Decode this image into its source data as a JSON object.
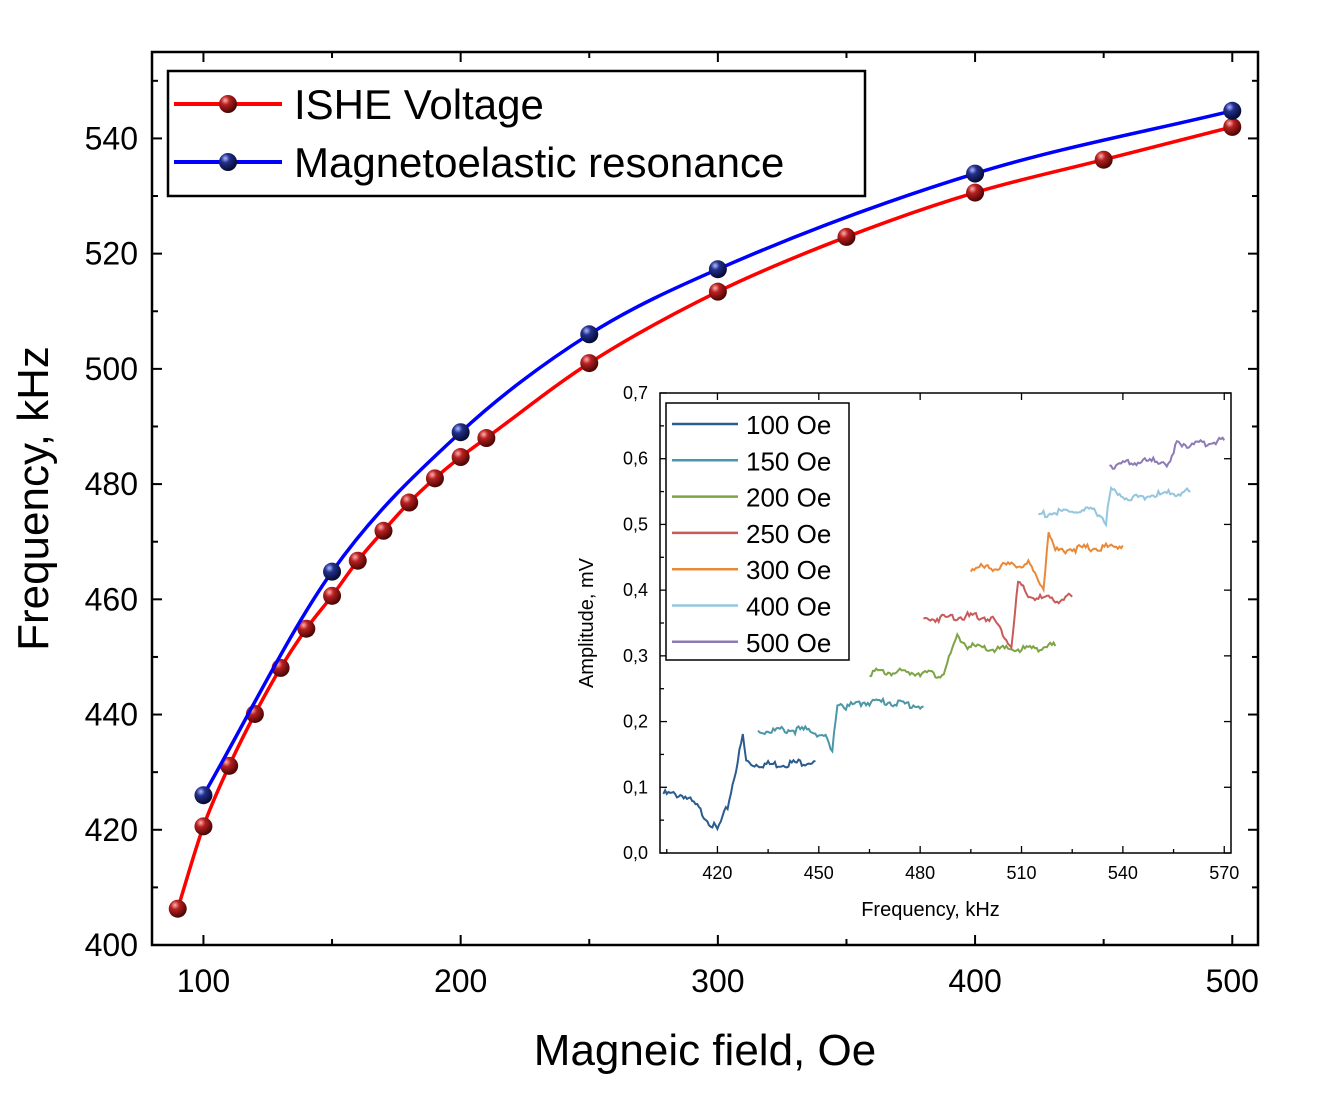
{
  "chart_data": [
    {
      "type": "line",
      "title": "",
      "xlabel": "Magneic field, Oe",
      "ylabel": "Frequency, kHz",
      "xlim": [
        80,
        510
      ],
      "ylim": [
        400,
        555
      ],
      "xticks": [
        100,
        200,
        300,
        400,
        500
      ],
      "yticks": [
        400,
        420,
        440,
        460,
        480,
        500,
        520,
        540
      ],
      "legend_position": "top-left",
      "series": [
        {
          "name": "ISHE Voltage",
          "color": "#ff0000",
          "marker_color": "#a01010",
          "x": [
            90,
            100,
            110,
            120,
            130,
            140,
            150,
            160,
            170,
            180,
            190,
            200,
            210,
            250,
            300,
            350,
            400,
            450,
            500
          ],
          "y": [
            406.3,
            420.6,
            431.1,
            440.1,
            448.1,
            454.9,
            460.6,
            466.7,
            471.9,
            476.8,
            481.0,
            484.7,
            488.0,
            501.0,
            513.4,
            522.9,
            530.6,
            536.3,
            542.0
          ]
        },
        {
          "name": "Magnetoelastic resonance",
          "color": "#0000ff",
          "marker_color": "#10186e",
          "x": [
            100,
            150,
            200,
            250,
            300,
            400,
            500
          ],
          "y": [
            426.0,
            464.8,
            489.0,
            506.0,
            517.3,
            533.9,
            544.8
          ]
        }
      ]
    },
    {
      "type": "line",
      "title": "",
      "xlabel": "Frequency, kHz",
      "ylabel": "Amplitude, mV",
      "xlim": [
        403,
        572
      ],
      "ylim": [
        0.0,
        0.7
      ],
      "xticks": [
        "420",
        "450",
        "480",
        "510",
        "540",
        "570"
      ],
      "yticks": [
        "0,0",
        "0,1",
        "0,2",
        "0,3",
        "0,4",
        "0,5",
        "0,6",
        "0,7"
      ],
      "legend_position": "top-left",
      "series": [
        {
          "name": "100 Oe",
          "color": "#2b5b8f",
          "x": [
            404,
            410,
            414,
            418,
            420,
            423,
            426,
            427.5,
            428.5,
            430,
            438,
            449
          ],
          "y": [
            0.09,
            0.088,
            0.07,
            0.045,
            0.035,
            0.07,
            0.14,
            0.178,
            0.14,
            0.135,
            0.135,
            0.14
          ]
        },
        {
          "name": "150 Oe",
          "color": "#4a97a8",
          "x": [
            432,
            440,
            448,
            452,
            454,
            455.5,
            458,
            464,
            470,
            481
          ],
          "y": [
            0.185,
            0.187,
            0.187,
            0.175,
            0.152,
            0.23,
            0.222,
            0.23,
            0.23,
            0.223
          ]
        },
        {
          "name": "200 Oe",
          "color": "#7ea445",
          "x": [
            465,
            475,
            481,
            485,
            487,
            489,
            491,
            494,
            500,
            510,
            520
          ],
          "y": [
            0.275,
            0.275,
            0.275,
            0.27,
            0.275,
            0.3,
            0.33,
            0.315,
            0.31,
            0.31,
            0.315
          ]
        },
        {
          "name": "250 Oe",
          "color": "#c85a5a",
          "x": [
            481,
            490,
            498,
            502,
            505,
            507,
            509,
            512,
            520,
            525
          ],
          "y": [
            0.355,
            0.36,
            0.36,
            0.355,
            0.33,
            0.315,
            0.412,
            0.39,
            0.385,
            0.39
          ]
        },
        {
          "name": "300 Oe",
          "color": "#e8893a",
          "x": [
            495,
            505,
            512,
            515,
            516.5,
            518,
            520,
            525,
            534,
            540
          ],
          "y": [
            0.433,
            0.436,
            0.44,
            0.415,
            0.405,
            0.49,
            0.46,
            0.463,
            0.465,
            0.468
          ]
        },
        {
          "name": "400 Oe",
          "color": "#94c6df",
          "x": [
            515,
            525,
            532,
            535,
            536.5,
            538,
            542,
            550,
            560
          ],
          "y": [
            0.515,
            0.52,
            0.52,
            0.505,
            0.555,
            0.545,
            0.54,
            0.545,
            0.55
          ]
        },
        {
          "name": "500 Oe",
          "color": "#8e7bb6",
          "x": [
            536,
            545,
            552,
            554,
            556,
            560,
            570
          ],
          "y": [
            0.59,
            0.595,
            0.597,
            0.59,
            0.625,
            0.62,
            0.628
          ]
        }
      ]
    }
  ]
}
